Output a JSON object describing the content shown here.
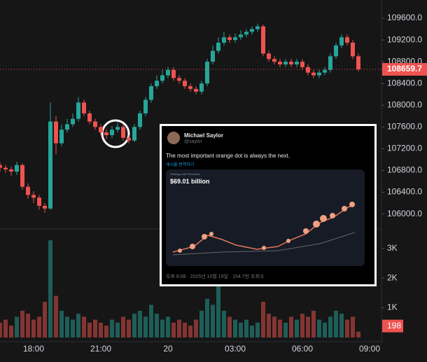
{
  "chart_data": {
    "type": "candlestick",
    "categories": [
      null,
      null,
      null,
      null,
      null,
      null,
      "18:00",
      null,
      null,
      null,
      null,
      null,
      null,
      null,
      null,
      null,
      null,
      null,
      "21:00",
      null,
      null,
      null,
      null,
      null,
      null,
      null,
      null,
      null,
      null,
      null,
      "20",
      null,
      null,
      null,
      null,
      null,
      null,
      null,
      null,
      null,
      null,
      null,
      "03:00",
      null,
      null,
      null,
      null,
      null,
      null,
      null,
      null,
      null,
      null,
      null,
      "06:00",
      null,
      null,
      null,
      null,
      null,
      null,
      null,
      null,
      null,
      null,
      null,
      "09:00"
    ],
    "ohlc": [
      [
        106900,
        106950,
        106780,
        106850
      ],
      [
        106850,
        106900,
        106760,
        106820
      ],
      [
        106820,
        106870,
        106700,
        106780
      ],
      [
        106780,
        106960,
        106720,
        106900
      ],
      [
        106900,
        106930,
        106450,
        106500
      ],
      [
        106500,
        106560,
        106280,
        106350
      ],
      [
        106350,
        106420,
        106200,
        106300
      ],
      [
        106300,
        106350,
        106080,
        106150
      ],
      [
        106150,
        106200,
        106020,
        106100
      ],
      [
        106100,
        108050,
        106080,
        107700
      ],
      [
        107700,
        107800,
        107100,
        107300
      ],
      [
        107300,
        107650,
        107250,
        107550
      ],
      [
        107550,
        107750,
        107500,
        107650
      ],
      [
        107650,
        107850,
        107600,
        107750
      ],
      [
        107750,
        108150,
        107700,
        108050
      ],
      [
        108050,
        108100,
        107800,
        107850
      ],
      [
        107850,
        107900,
        107650,
        107700
      ],
      [
        107700,
        107750,
        107550,
        107600
      ],
      [
        107600,
        107650,
        107450,
        107500
      ],
      [
        107500,
        107560,
        107380,
        107450
      ],
      [
        107450,
        107620,
        107400,
        107550
      ],
      [
        107550,
        107680,
        107500,
        107600
      ],
      [
        107600,
        107650,
        107350,
        107400
      ],
      [
        107400,
        107450,
        107300,
        107350
      ],
      [
        107350,
        107650,
        107320,
        107600
      ],
      [
        107600,
        107900,
        107550,
        107850
      ],
      [
        107850,
        108150,
        107800,
        108100
      ],
      [
        108100,
        108400,
        108050,
        108350
      ],
      [
        108350,
        108550,
        108300,
        108450
      ],
      [
        108450,
        108650,
        108400,
        108550
      ],
      [
        108550,
        108700,
        108500,
        108650
      ],
      [
        108650,
        108700,
        108450,
        108500
      ],
      [
        108500,
        108550,
        108400,
        108450
      ],
      [
        108450,
        108500,
        108300,
        108350
      ],
      [
        108350,
        108400,
        108250,
        108300
      ],
      [
        108300,
        108350,
        108200,
        108250
      ],
      [
        108250,
        108450,
        108200,
        108400
      ],
      [
        108400,
        108850,
        108350,
        108800
      ],
      [
        108800,
        109100,
        108750,
        109000
      ],
      [
        109000,
        109250,
        108950,
        109150
      ],
      [
        109150,
        109350,
        109100,
        109250
      ],
      [
        109250,
        109300,
        109150,
        109200
      ],
      [
        109200,
        109320,
        109150,
        109250
      ],
      [
        109250,
        109380,
        109200,
        109300
      ],
      [
        109300,
        109400,
        109250,
        109350
      ],
      [
        109350,
        109450,
        109300,
        109400
      ],
      [
        109400,
        109500,
        109350,
        109450
      ],
      [
        109450,
        109480,
        108900,
        108950
      ],
      [
        108950,
        109000,
        108800,
        108850
      ],
      [
        108850,
        108900,
        108750,
        108800
      ],
      [
        108800,
        108850,
        108700,
        108750
      ],
      [
        108750,
        108850,
        108700,
        108800
      ],
      [
        108800,
        108850,
        108700,
        108750
      ],
      [
        108750,
        108850,
        108700,
        108800
      ],
      [
        108800,
        108850,
        108650,
        108700
      ],
      [
        108700,
        108750,
        108550,
        108600
      ],
      [
        108600,
        108650,
        108500,
        108550
      ],
      [
        108550,
        108650,
        108500,
        108600
      ],
      [
        108600,
        108700,
        108550,
        108650
      ],
      [
        108650,
        108950,
        108600,
        108900
      ],
      [
        108900,
        109150,
        108850,
        109100
      ],
      [
        109100,
        109300,
        109050,
        109250
      ],
      [
        109250,
        109300,
        109100,
        109150
      ],
      [
        109150,
        109200,
        108850,
        108900
      ],
      [
        108900,
        108950,
        108620,
        108659.7
      ],
      null,
      null
    ],
    "volume": [
      500,
      600,
      400,
      700,
      900,
      800,
      600,
      700,
      1200,
      3270,
      1400,
      900,
      700,
      600,
      800,
      700,
      500,
      600,
      500,
      400,
      600,
      500,
      700,
      600,
      800,
      900,
      700,
      1100,
      800,
      600,
      700,
      500,
      600,
      500,
      400,
      600,
      900,
      1300,
      1100,
      2000,
      900,
      700,
      600,
      500,
      600,
      400,
      500,
      1200,
      800,
      700,
      600,
      500,
      700,
      600,
      800,
      700,
      900,
      600,
      500,
      700,
      900,
      800,
      600,
      700,
      198,
      null,
      null
    ],
    "up_color": "#26a69a",
    "down_color": "#ef5350",
    "ylim": [
      105750,
      109935
    ],
    "yticks": [
      {
        "value": 109600,
        "label": "109600.0"
      },
      {
        "value": 109200,
        "label": "109200.0"
      },
      {
        "value": 108800,
        "label": "108800.0"
      },
      {
        "value": 108400,
        "label": "108400.0"
      },
      {
        "value": 108000,
        "label": "108000.0"
      },
      {
        "value": 107600,
        "label": "107600.0"
      },
      {
        "value": 107200,
        "label": "107200.0"
      },
      {
        "value": 106800,
        "label": "106800.0"
      },
      {
        "value": 106400,
        "label": "106400.0"
      },
      {
        "value": 106000,
        "label": "106000.0"
      }
    ],
    "y2lim": [
      0,
      3580
    ],
    "y2ticks": [
      {
        "value": 3000,
        "label": "3K"
      },
      {
        "value": 2000,
        "label": "2K"
      },
      {
        "value": 1000,
        "label": "1K"
      }
    ]
  },
  "tweet": {
    "author": "Michael Saylor",
    "handle": "@saylor",
    "text": "The most important orange dot is always the next.",
    "translate": "게시물 번역하기",
    "image_title": "Strategy with Purchases",
    "image_value": "$69.01 billion",
    "footer": "오후 8:08 · 2025년 10월 19일 · 154.7만 조회수"
  }
}
